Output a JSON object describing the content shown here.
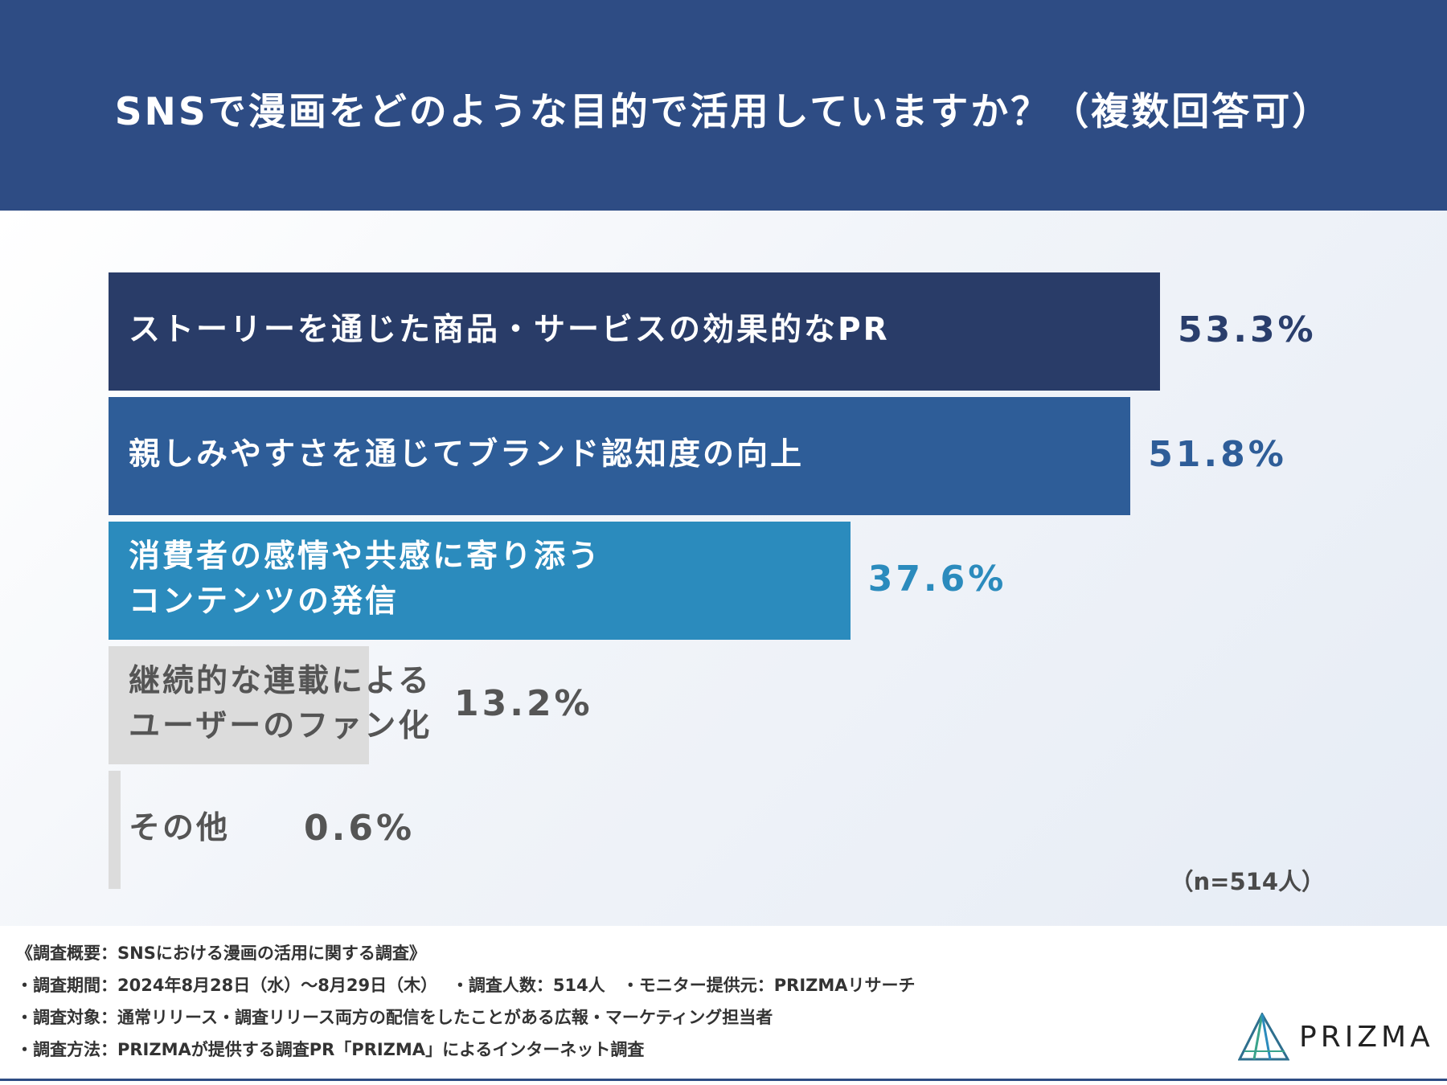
{
  "header": {
    "title": "SNSで漫画をどのような目的で活用していますか？（複数回答可）",
    "background": "#2e4c84"
  },
  "chart_data": {
    "type": "bar",
    "orientation": "horizontal",
    "categories": [
      "ストーリーを通じた商品・サービスの効果的なPR",
      "親しみやすさを通じてブランド認知度の向上",
      "消費者の感情や共感に寄り添う\nコンテンツの発信",
      "継続的な連載による\nユーザーのファン化",
      "その他"
    ],
    "values": [
      53.3,
      51.8,
      37.6,
      13.2,
      0.6
    ],
    "value_labels": [
      "53.3%",
      "51.8%",
      "37.6%",
      "13.2%",
      "0.6%"
    ],
    "unit": "%",
    "xlim": [
      0,
      53.3
    ],
    "grid": false,
    "bar_colors": [
      "#293c68",
      "#2e5d98",
      "#2b8bbd",
      "#dcdcdc",
      "#dcdcdc"
    ],
    "label_colors": [
      "#ffffff",
      "#ffffff",
      "#ffffff",
      "#555555",
      "#555555"
    ],
    "value_colors": [
      "#2a3e6c",
      "#2e5d98",
      "#2b8bbd",
      "#555555",
      "#555555"
    ],
    "note": "（n=514人）"
  },
  "footer": {
    "lines": [
      "《調査概要：SNSにおける漫画の活用に関する調査》",
      "・調査期間：2024年8月28日（水）～8月29日（木）　 ・調査人数：514人　・モニター提供元：PRIZMAリサーチ",
      "・調査対象：通常リリース・調査リリース両方の配信をしたことがある広報・マーケティング担当者",
      "・調査方法：PRIZMAが提供する調査PR「PRIZMA」によるインターネット調査"
    ],
    "logo_text": "PRIZMA",
    "logo_icon": "prizma-triangle-logo"
  }
}
